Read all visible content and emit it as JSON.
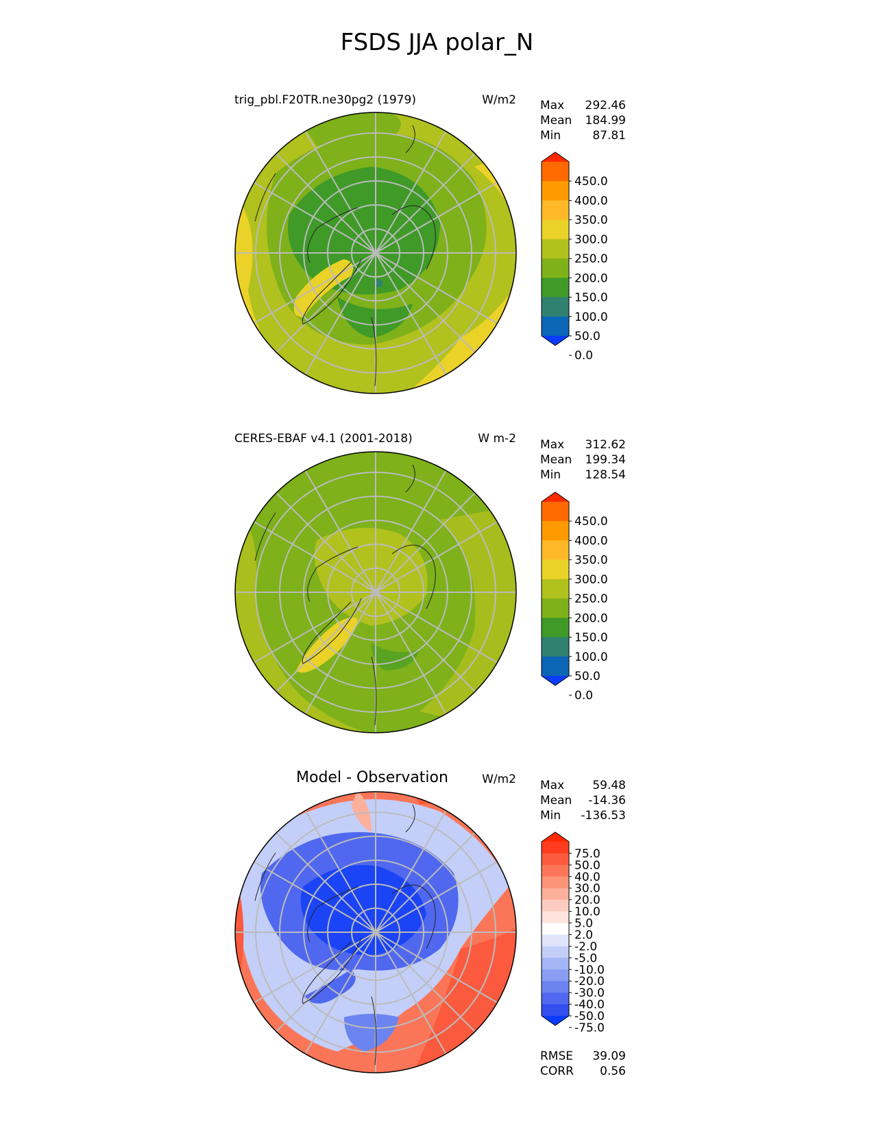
{
  "title": "FSDS JJA polar_N",
  "panels": [
    {
      "subtitle": "trig_pbl.F20TR.ne30pg2 (1979)",
      "units": "W/m2",
      "stats": [
        {
          "label": "Max",
          "value": "292.46"
        },
        {
          "label": "Mean",
          "value": "184.99"
        },
        {
          "label": "Min",
          "value": "87.81"
        }
      ],
      "colorbar_labels": [
        "450.0",
        "400.0",
        "350.0",
        "300.0",
        "250.0",
        "200.0",
        "150.0",
        "100.0",
        "50.0",
        "0.0"
      ],
      "colorbar_colors": [
        "#ff2a00",
        "#ff6a00",
        "#ff9a00",
        "#ffb928",
        "#ead228",
        "#b1c11e",
        "#7eb11a",
        "#3f9a28",
        "#308170",
        "#0b66b5",
        "#0a3cff"
      ]
    },
    {
      "subtitle": "CERES-EBAF v4.1 (2001-2018)",
      "units": "W m-2",
      "stats": [
        {
          "label": "Max",
          "value": "312.62"
        },
        {
          "label": "Mean",
          "value": "199.34"
        },
        {
          "label": "Min",
          "value": "128.54"
        }
      ],
      "colorbar_labels": [
        "450.0",
        "400.0",
        "350.0",
        "300.0",
        "250.0",
        "200.0",
        "150.0",
        "100.0",
        "50.0",
        "0.0"
      ],
      "colorbar_colors": [
        "#ff2a00",
        "#ff6a00",
        "#ff9a00",
        "#ffb928",
        "#ead228",
        "#b1c11e",
        "#7eb11a",
        "#3f9a28",
        "#308170",
        "#0b66b5",
        "#0a3cff"
      ]
    },
    {
      "subtitle": "Model - Observation",
      "units": "W/m2",
      "stats": [
        {
          "label": "Max",
          "value": "59.48"
        },
        {
          "label": "Mean",
          "value": "-14.36"
        },
        {
          "label": "Min",
          "value": "-136.53"
        }
      ],
      "colorbar_labels": [
        "75.0",
        "50.0",
        "40.0",
        "30.0",
        "20.0",
        "10.0",
        "5.0",
        "2.0",
        "-2.0",
        "-5.0",
        "-10.0",
        "-20.0",
        "-30.0",
        "-40.0",
        "-50.0",
        "-75.0"
      ],
      "colorbar_colors": [
        "#ff2a00",
        "#ff3c1e",
        "#fb5a3e",
        "#fb7658",
        "#fc9478",
        "#fdb09c",
        "#fdccc0",
        "#fde4dc",
        "#ffffff",
        "#dfe5fb",
        "#c3cff8",
        "#a4b5f5",
        "#8a9df2",
        "#6c84ef",
        "#5068ef",
        "#3350ee",
        "#0a3cff"
      ],
      "extra_stats": [
        {
          "label": "RMSE",
          "value": "39.09"
        },
        {
          "label": "CORR",
          "value": "0.56"
        }
      ]
    }
  ],
  "chart_data": [
    {
      "type": "heatmap",
      "title": "trig_pbl.F20TR.ne30pg2 (1979)",
      "units": "W/m2",
      "max": 292.46,
      "mean": 184.99,
      "min": 87.81,
      "levels": [
        0,
        50,
        100,
        150,
        200,
        250,
        300,
        350,
        400,
        450
      ]
    },
    {
      "type": "heatmap",
      "title": "CERES-EBAF v4.1 (2001-2018)",
      "units": "W m-2",
      "max": 312.62,
      "mean": 199.34,
      "min": 128.54,
      "levels": [
        0,
        50,
        100,
        150,
        200,
        250,
        300,
        350,
        400,
        450
      ]
    },
    {
      "type": "heatmap",
      "title": "Model - Observation",
      "units": "W/m2",
      "max": 59.48,
      "mean": -14.36,
      "min": -136.53,
      "rmse": 39.09,
      "corr": 0.56,
      "levels": [
        -75,
        -50,
        -40,
        -30,
        -20,
        -10,
        -5,
        -2,
        2,
        5,
        10,
        20,
        30,
        40,
        50,
        75
      ]
    }
  ]
}
